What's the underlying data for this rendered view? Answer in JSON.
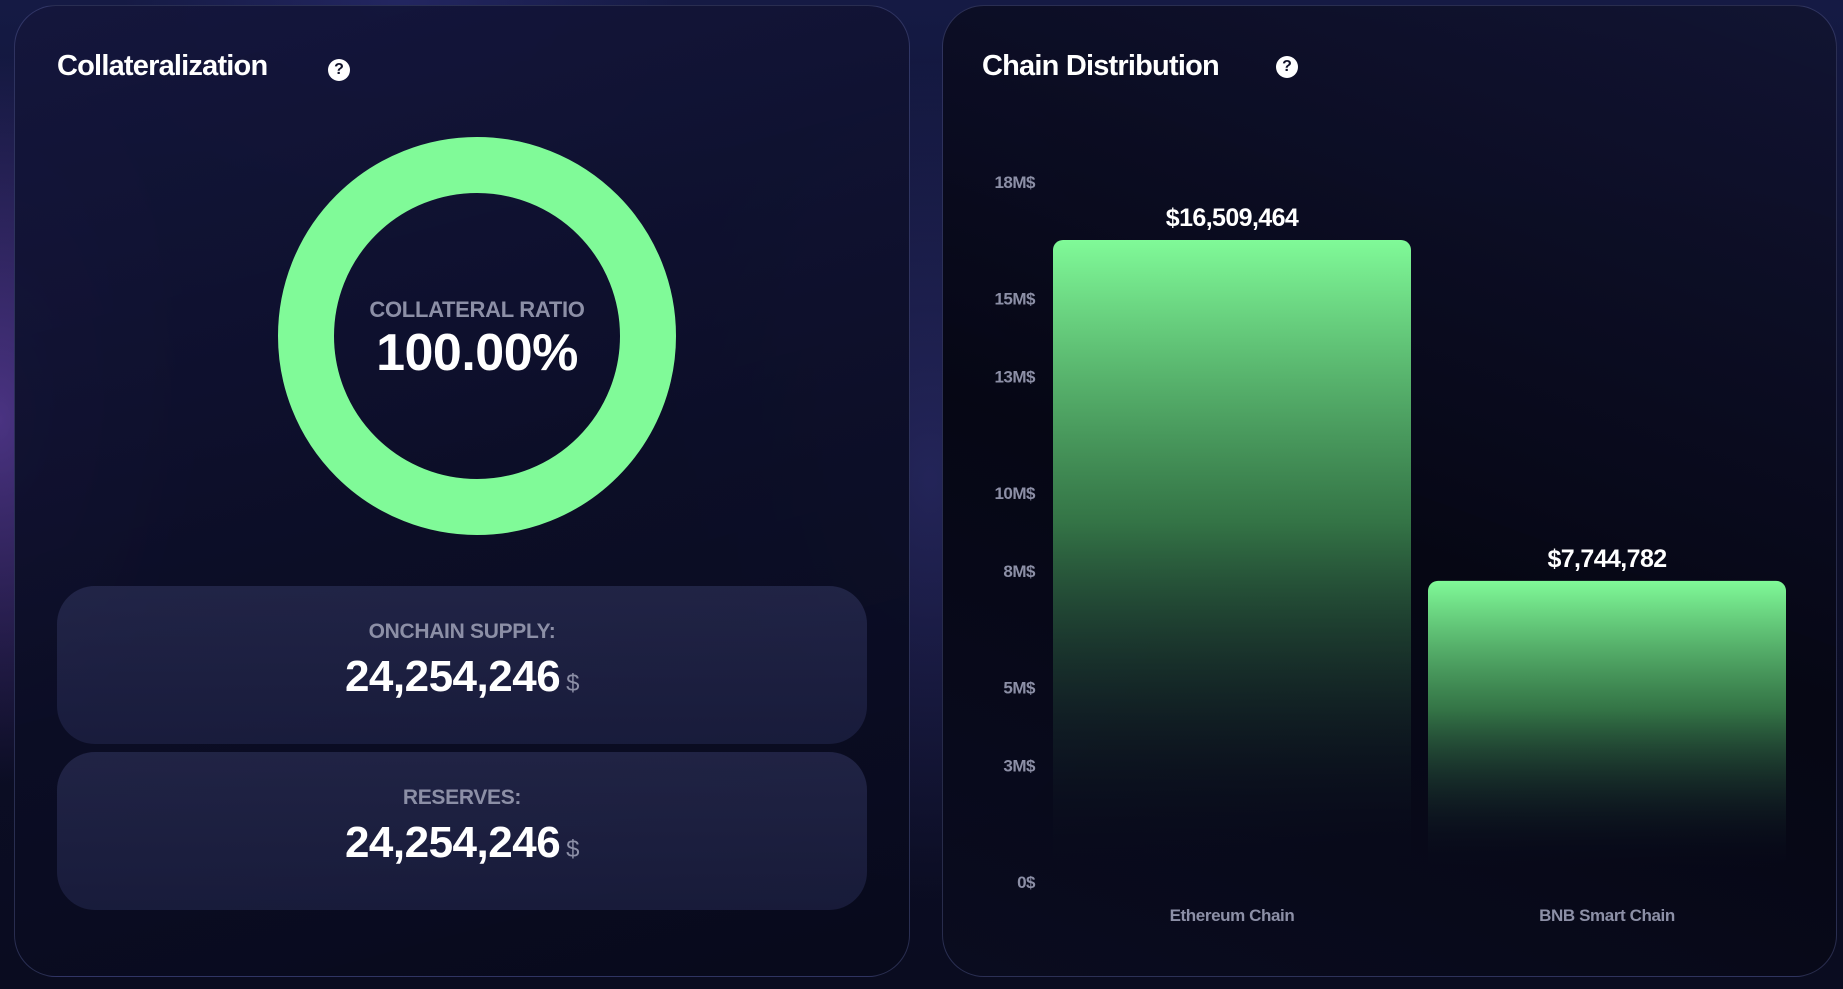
{
  "collateralization": {
    "title": "Collateralization",
    "help_icon": "question-mark-icon",
    "ratio_label": "COLLATERAL RATIO",
    "ratio_value": "100.00%",
    "ratio_fraction": 1.0,
    "ring_color": "#80fa98",
    "onchain_supply": {
      "label": "ONCHAIN SUPPLY:",
      "value": "24,254,246",
      "unit": "$"
    },
    "reserves": {
      "label": "RESERVES:",
      "value": "24,254,246",
      "unit": "$"
    }
  },
  "chain_distribution": {
    "title": "Chain Distribution",
    "help_icon": "question-mark-icon"
  },
  "chart_data": {
    "type": "bar",
    "title": "Chain Distribution",
    "categories": [
      "Ethereum Chain",
      "BNB Smart Chain"
    ],
    "values": [
      16509464,
      7744782
    ],
    "value_labels": [
      "$16,509,464",
      "$7,744,782"
    ],
    "y_ticks": [
      0,
      3000000,
      5000000,
      8000000,
      10000000,
      13000000,
      15000000,
      18000000
    ],
    "y_tick_labels": [
      "0$",
      "3M$",
      "5M$",
      "8M$",
      "10M$",
      "13M$",
      "15M$",
      "18M$"
    ],
    "ylim": [
      0,
      18000000
    ],
    "bar_color": "#80fa98",
    "grid": false,
    "legend": "none"
  }
}
